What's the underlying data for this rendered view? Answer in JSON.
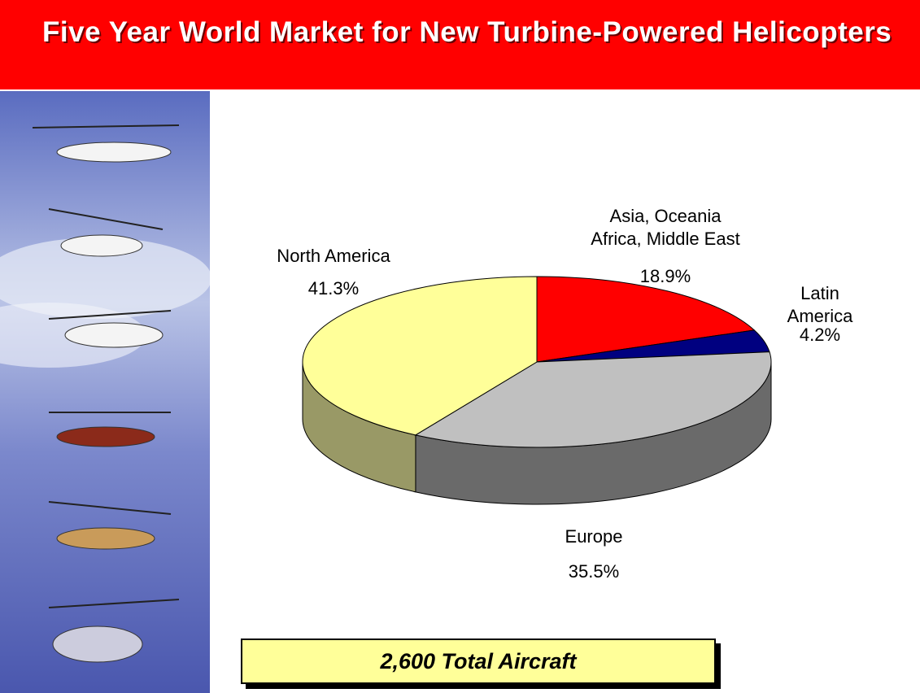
{
  "chart_data": {
    "type": "pie",
    "title": "Five Year World Market for New Turbine-Powered Helicopters",
    "categories": [
      "Asia, Oceania\nAfrica, Middle East",
      "Latin America",
      "Europe",
      "North America"
    ],
    "values": [
      18.9,
      4.2,
      35.5,
      41.3
    ],
    "value_labels": [
      "18.9%",
      "4.2%",
      "35.5%",
      "41.3%"
    ],
    "colors": [
      "#ff0000",
      "#000080",
      "#c0c0c0",
      "#ffff99"
    ],
    "annotation": "2,600 Total Aircraft"
  }
}
